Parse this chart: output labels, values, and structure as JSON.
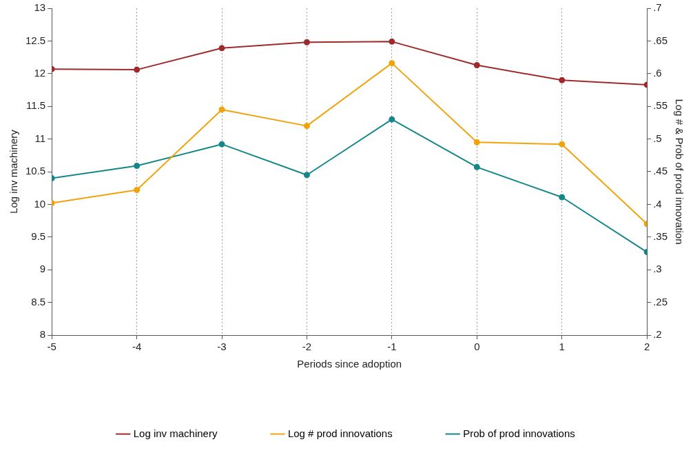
{
  "chart_data": {
    "type": "line",
    "xlabel": "Periods since adoption",
    "ylabel": "Log inv machinery",
    "y2label": "Log # & Prob of prod innovation",
    "x": [
      -5,
      -4,
      -3,
      -2,
      -1,
      0,
      1,
      2
    ],
    "xlim": [
      -5,
      2
    ],
    "xticks": [
      -5,
      -4,
      -3,
      -2,
      -1,
      0,
      1,
      2
    ],
    "ylim": [
      8,
      13
    ],
    "yticks": [
      8,
      8.5,
      9,
      9.5,
      10,
      10.5,
      11,
      11.5,
      12,
      12.5,
      13
    ],
    "y2lim": [
      0.2,
      0.7
    ],
    "y2ticks": [
      {
        "value": 0.2,
        "label": ".2"
      },
      {
        "value": 0.25,
        "label": ".25"
      },
      {
        "value": 0.3,
        "label": ".3"
      },
      {
        "value": 0.35,
        "label": ".35"
      },
      {
        "value": 0.4,
        "label": ".4"
      },
      {
        "value": 0.45,
        "label": ".45"
      },
      {
        "value": 0.5,
        "label": ".5"
      },
      {
        "value": 0.55,
        "label": ".55"
      },
      {
        "value": 0.6,
        "label": ".6"
      },
      {
        "value": 0.65,
        "label": ".65"
      },
      {
        "value": 0.7,
        "label": ".7"
      }
    ],
    "series": [
      {
        "name": "Log inv machinery",
        "color": "#9e2a2b",
        "values": [
          12.07,
          12.06,
          12.39,
          12.48,
          12.49,
          12.13,
          11.9,
          11.83
        ]
      },
      {
        "name": "Log # prod innovations",
        "color": "#f0a30a",
        "axis": "y2",
        "values": [
          0.402,
          0.422,
          0.545,
          0.52,
          0.616,
          0.495,
          0.492,
          0.37
        ]
      },
      {
        "name": "Prob of prod innovations",
        "color": "#14878a",
        "axis": "y2",
        "values": [
          0.44,
          0.459,
          0.492,
          0.445,
          0.53,
          0.457,
          0.411,
          0.327
        ]
      }
    ],
    "grid": "x",
    "legend": "bottom",
    "marker": "circle",
    "line_style": "solid"
  }
}
